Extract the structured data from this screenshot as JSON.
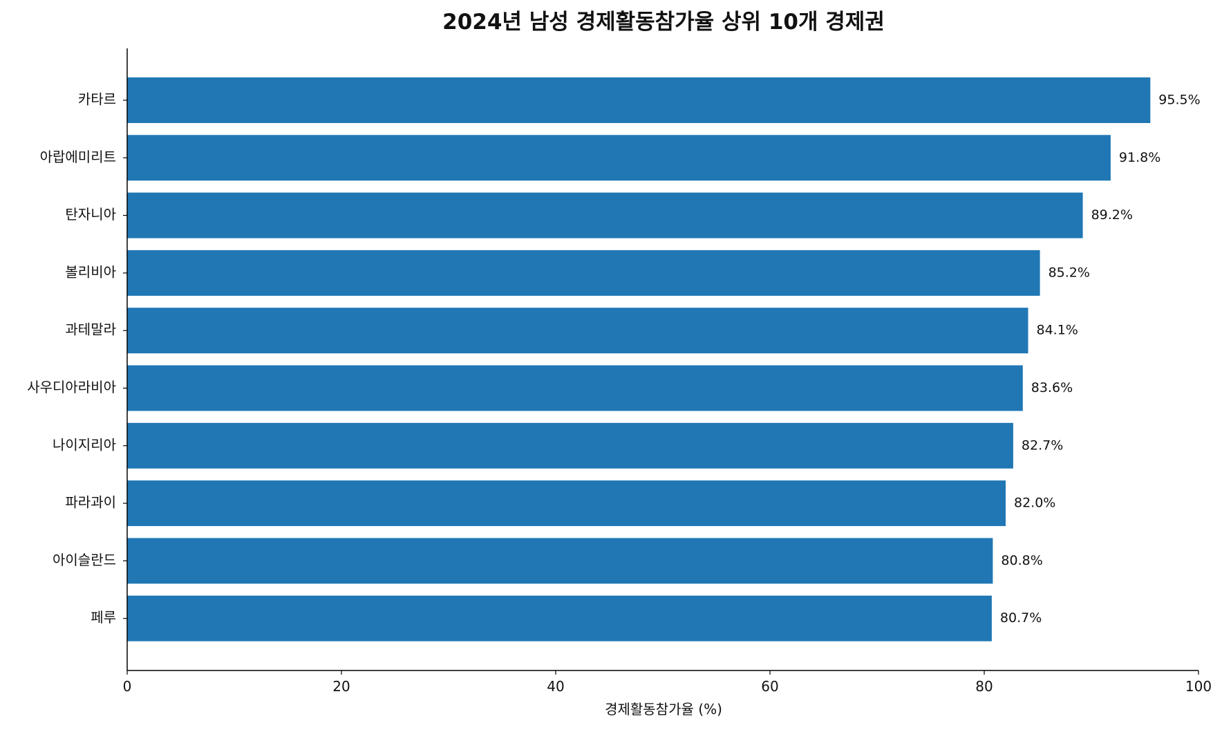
{
  "chart_data": {
    "type": "bar",
    "orientation": "horizontal",
    "title": "2024년 남성 경제활동참가율 상위 10개 경제권",
    "xlabel": "경제활동참가율 (%)",
    "ylabel": "",
    "xlim": [
      0,
      100
    ],
    "xticks": [
      0,
      20,
      40,
      60,
      80,
      100
    ],
    "categories": [
      "카타르",
      "아랍에미리트",
      "탄자니아",
      "볼리비아",
      "과테말라",
      "사우디아라비아",
      "나이지리아",
      "파라과이",
      "아이슬란드",
      "페루"
    ],
    "values": [
      95.5,
      91.8,
      89.2,
      85.2,
      84.1,
      83.6,
      82.7,
      82.0,
      80.8,
      80.7
    ],
    "value_labels": [
      "95.5%",
      "91.8%",
      "89.2%",
      "85.2%",
      "84.1%",
      "83.6%",
      "82.7%",
      "82.0%",
      "80.8%",
      "80.7%"
    ],
    "bar_color": "#2077b4",
    "grid": false,
    "legend": "none"
  }
}
